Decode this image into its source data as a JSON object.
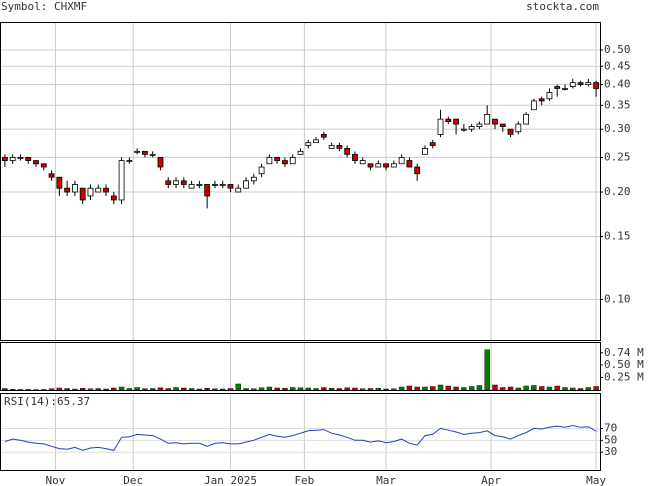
{
  "chart_data": {
    "type": "candlestick",
    "title": "Symbol: CHXMF",
    "source": "stockta.com",
    "x": [
      1,
      3,
      5,
      7,
      9,
      11,
      13,
      15,
      17,
      19,
      21,
      23,
      25,
      27,
      29,
      31,
      33,
      35,
      37,
      39,
      41,
      43,
      45,
      47,
      49,
      51,
      53,
      55,
      57,
      59,
      61,
      63,
      65,
      67,
      69,
      71,
      73,
      75,
      77,
      79,
      81,
      83,
      85,
      87,
      89,
      91,
      93,
      95,
      97,
      99,
      101,
      103,
      105,
      107,
      109,
      111,
      113,
      115,
      117,
      119,
      121,
      123,
      125,
      127,
      129,
      131,
      133,
      135,
      137,
      139,
      141,
      143,
      145,
      147,
      149,
      151,
      153
    ],
    "open": [
      0.25,
      0.245,
      0.25,
      0.25,
      0.245,
      0.24,
      0.225,
      0.22,
      0.205,
      0.2,
      0.205,
      0.195,
      0.2,
      0.205,
      0.195,
      0.19,
      0.245,
      0.26,
      0.26,
      0.255,
      0.25,
      0.215,
      0.21,
      0.215,
      0.205,
      0.21,
      0.21,
      0.21,
      0.21,
      0.21,
      0.2,
      0.205,
      0.215,
      0.225,
      0.24,
      0.25,
      0.245,
      0.24,
      0.255,
      0.27,
      0.275,
      0.29,
      0.265,
      0.27,
      0.265,
      0.255,
      0.24,
      0.24,
      0.235,
      0.24,
      0.235,
      0.24,
      0.245,
      0.235,
      0.255,
      0.275,
      0.29,
      0.32,
      0.32,
      0.3,
      0.3,
      0.305,
      0.31,
      0.32,
      0.31,
      0.3,
      0.295,
      0.31,
      0.34,
      0.365,
      0.365,
      0.395,
      0.39,
      0.395,
      0.405,
      0.4,
      0.405
    ],
    "high": [
      0.255,
      0.255,
      0.255,
      0.25,
      0.245,
      0.24,
      0.23,
      0.22,
      0.215,
      0.215,
      0.205,
      0.21,
      0.21,
      0.21,
      0.2,
      0.25,
      0.25,
      0.265,
      0.26,
      0.26,
      0.25,
      0.22,
      0.22,
      0.22,
      0.215,
      0.215,
      0.21,
      0.215,
      0.215,
      0.21,
      0.21,
      0.22,
      0.225,
      0.24,
      0.255,
      0.25,
      0.25,
      0.255,
      0.265,
      0.28,
      0.285,
      0.295,
      0.275,
      0.275,
      0.27,
      0.26,
      0.25,
      0.24,
      0.245,
      0.24,
      0.245,
      0.255,
      0.25,
      0.24,
      0.27,
      0.28,
      0.34,
      0.325,
      0.32,
      0.31,
      0.31,
      0.315,
      0.35,
      0.32,
      0.31,
      0.3,
      0.315,
      0.335,
      0.365,
      0.37,
      0.39,
      0.4,
      0.4,
      0.415,
      0.41,
      0.415,
      0.41
    ],
    "low": [
      0.235,
      0.24,
      0.245,
      0.24,
      0.235,
      0.23,
      0.215,
      0.195,
      0.195,
      0.195,
      0.185,
      0.19,
      0.2,
      0.195,
      0.185,
      0.185,
      0.24,
      0.255,
      0.25,
      0.25,
      0.23,
      0.205,
      0.205,
      0.205,
      0.205,
      0.205,
      0.18,
      0.205,
      0.205,
      0.2,
      0.2,
      0.205,
      0.21,
      0.22,
      0.24,
      0.24,
      0.235,
      0.24,
      0.255,
      0.265,
      0.275,
      0.28,
      0.265,
      0.26,
      0.25,
      0.24,
      0.24,
      0.23,
      0.235,
      0.23,
      0.235,
      0.24,
      0.235,
      0.215,
      0.255,
      0.265,
      0.285,
      0.31,
      0.29,
      0.295,
      0.295,
      0.3,
      0.31,
      0.3,
      0.295,
      0.285,
      0.29,
      0.31,
      0.34,
      0.35,
      0.36,
      0.37,
      0.385,
      0.39,
      0.395,
      0.395,
      0.37
    ],
    "close": [
      0.245,
      0.25,
      0.25,
      0.245,
      0.24,
      0.235,
      0.22,
      0.205,
      0.2,
      0.21,
      0.19,
      0.205,
      0.205,
      0.2,
      0.19,
      0.245,
      0.245,
      0.26,
      0.255,
      0.255,
      0.235,
      0.21,
      0.215,
      0.21,
      0.21,
      0.21,
      0.195,
      0.21,
      0.21,
      0.205,
      0.205,
      0.215,
      0.22,
      0.235,
      0.25,
      0.245,
      0.24,
      0.25,
      0.26,
      0.275,
      0.28,
      0.285,
      0.27,
      0.265,
      0.255,
      0.245,
      0.245,
      0.235,
      0.24,
      0.235,
      0.24,
      0.25,
      0.235,
      0.225,
      0.265,
      0.27,
      0.32,
      0.315,
      0.31,
      0.3,
      0.305,
      0.31,
      0.33,
      0.31,
      0.305,
      0.29,
      0.31,
      0.33,
      0.36,
      0.36,
      0.38,
      0.39,
      0.39,
      0.405,
      0.4,
      0.405,
      0.39
    ],
    "up_color": "#ffffff",
    "down_color": "#cc0000",
    "log_scale": true,
    "grid": true,
    "xlim": [
      0,
      154
    ],
    "xticks": [
      {
        "value": 14,
        "label": "Nov"
      },
      {
        "value": 34,
        "label": "Dec"
      },
      {
        "value": 59,
        "label": "Jan 2025"
      },
      {
        "value": 78,
        "label": "Feb"
      },
      {
        "value": 99,
        "label": "Mar"
      },
      {
        "value": 126,
        "label": "Apr"
      },
      {
        "value": 153,
        "label": "May"
      }
    ],
    "ylim": [
      0.077,
      0.595
    ],
    "yticks": [
      {
        "value": 0.5,
        "label": "0.50"
      },
      0.45,
      {
        "value": 0.4,
        "label": "0.40"
      },
      0.35,
      {
        "value": 0.3,
        "label": "0.30"
      },
      0.25,
      {
        "value": 0.2,
        "label": "0.20"
      },
      0.15,
      {
        "value": 0.1,
        "label": "0.10"
      }
    ],
    "volume": {
      "up_color": "#008000",
      "down_color": "#cc0000",
      "ylim": [
        0,
        935000
      ],
      "yticks": [
        {
          "value": 740000,
          "label": "0.74 M"
        },
        {
          "value": 500000,
          "label": "0.50 M"
        },
        {
          "value": 250000,
          "label": "0.25 M"
        }
      ],
      "values": [
        30000,
        15000,
        10000,
        12000,
        8000,
        10000,
        25000,
        40000,
        30000,
        20000,
        35000,
        25000,
        30000,
        20000,
        40000,
        60000,
        30000,
        50000,
        25000,
        30000,
        45000,
        30000,
        50000,
        40000,
        30000,
        20000,
        35000,
        25000,
        20000,
        30000,
        120000,
        30000,
        25000,
        45000,
        60000,
        40000,
        35000,
        50000,
        45000,
        40000,
        30000,
        50000,
        35000,
        30000,
        45000,
        40000,
        25000,
        30000,
        35000,
        20000,
        25000,
        60000,
        80000,
        60000,
        60000,
        70000,
        100000,
        80000,
        60000,
        50000,
        70000,
        90000,
        800000,
        100000,
        50000,
        60000,
        40000,
        80000,
        90000,
        70000,
        60000,
        80000,
        50000,
        40000,
        30000,
        50000,
        70000
      ]
    },
    "rsi": {
      "label": "RSI(14):",
      "color": "#2040c0",
      "ylim": [
        0,
        128
      ],
      "yticks": [
        70,
        50,
        30
      ],
      "values": [
        48,
        52,
        50,
        47,
        45,
        44,
        40,
        36,
        35,
        38,
        33,
        37,
        38,
        36,
        33,
        55,
        56,
        60,
        59,
        58,
        52,
        45,
        46,
        44,
        45,
        45,
        40,
        45,
        46,
        44,
        44,
        47,
        50,
        55,
        60,
        57,
        55,
        58,
        62,
        66,
        67,
        68,
        62,
        59,
        55,
        50,
        50,
        47,
        49,
        46,
        48,
        52,
        45,
        42,
        58,
        60,
        70,
        67,
        64,
        60,
        62,
        63,
        66,
        58,
        56,
        52,
        58,
        63,
        70,
        69,
        72,
        74,
        72,
        75,
        72,
        73,
        65.37
      ]
    }
  }
}
